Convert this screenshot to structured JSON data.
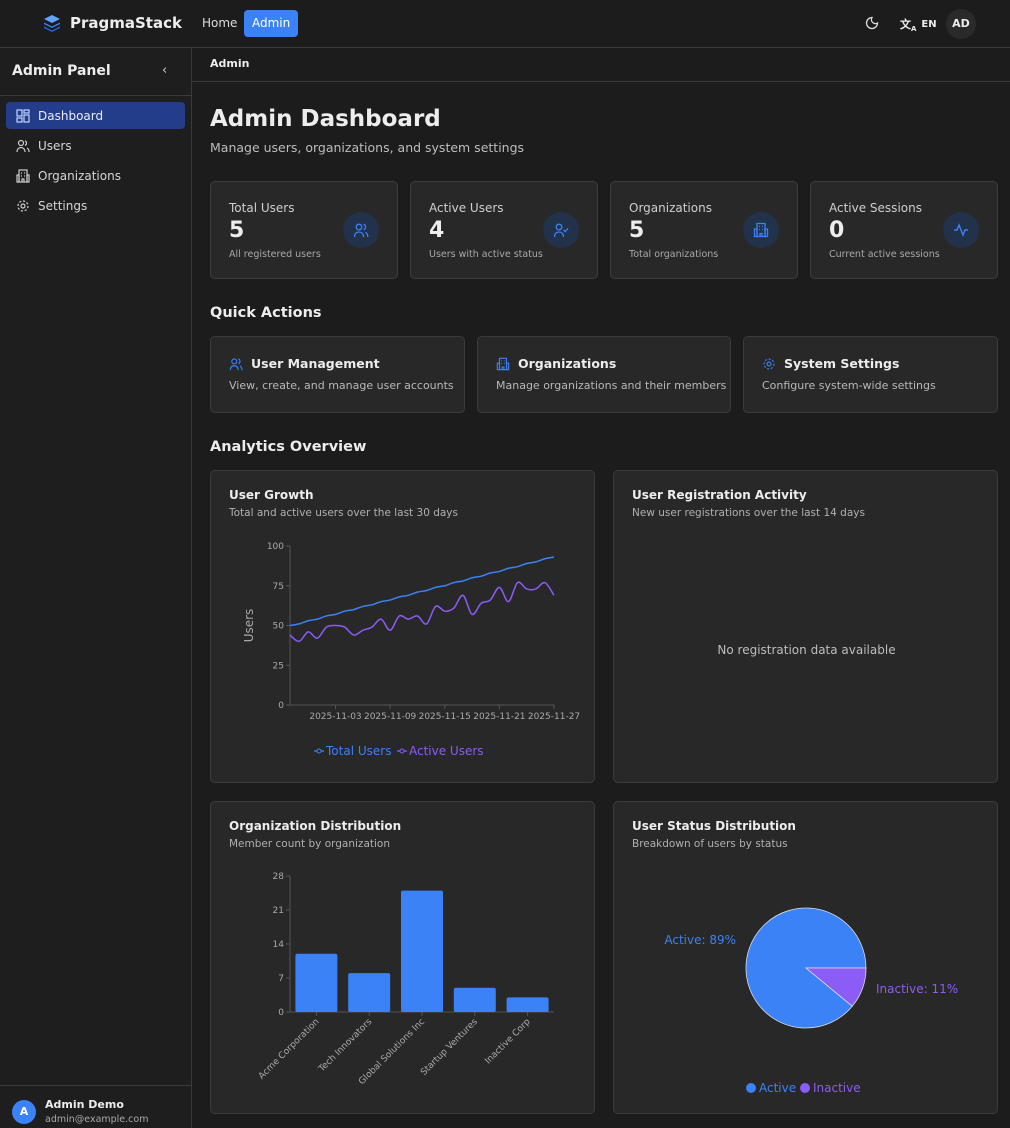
{
  "topbar": {
    "brand": "PragmaStack",
    "nav": [
      {
        "label": "Home",
        "active": false
      },
      {
        "label": "Admin",
        "active": true
      }
    ],
    "theme_icon": "moon-icon",
    "language": "EN",
    "avatar": "AD"
  },
  "sidebar": {
    "title": "Admin Panel",
    "items": [
      {
        "label": "Dashboard",
        "icon": "dashboard-icon",
        "active": true
      },
      {
        "label": "Users",
        "icon": "users-icon"
      },
      {
        "label": "Organizations",
        "icon": "building-icon"
      },
      {
        "label": "Settings",
        "icon": "gear-icon"
      }
    ],
    "user": {
      "initial": "A",
      "name": "Admin Demo",
      "email": "admin@example.com"
    }
  },
  "breadcrumb": "Admin",
  "page": {
    "title": "Admin Dashboard",
    "subtitle": "Manage users, organizations, and system settings"
  },
  "stats": [
    {
      "label": "Total Users",
      "value": "5",
      "sub": "All registered users",
      "icon": "users-icon"
    },
    {
      "label": "Active Users",
      "value": "4",
      "sub": "Users with active status",
      "icon": "user-check-icon"
    },
    {
      "label": "Organizations",
      "value": "5",
      "sub": "Total organizations",
      "icon": "building-icon"
    },
    {
      "label": "Active Sessions",
      "value": "0",
      "sub": "Current active sessions",
      "icon": "activity-icon"
    }
  ],
  "quick_actions": {
    "title": "Quick Actions",
    "items": [
      {
        "title": "User Management",
        "desc": "View, create, and manage user accounts",
        "icon": "users-icon"
      },
      {
        "title": "Organizations",
        "desc": "Manage organizations and their members",
        "icon": "building-icon"
      },
      {
        "title": "System Settings",
        "desc": "Configure system-wide settings",
        "icon": "gear-icon"
      }
    ]
  },
  "analytics": {
    "title": "Analytics Overview",
    "growth": {
      "title": "User Growth",
      "subtitle": "Total and active users over the last 30 days"
    },
    "registration": {
      "title": "User Registration Activity",
      "subtitle": "New user registrations over the last 14 days",
      "empty": "No registration data available"
    },
    "orgs": {
      "title": "Organization Distribution",
      "subtitle": "Member count by organization"
    },
    "status": {
      "title": "User Status Distribution",
      "subtitle": "Breakdown of users by status"
    }
  },
  "colors": {
    "accent": "#3b82f6",
    "purple": "#8b5cf6"
  },
  "chart_data": [
    {
      "type": "line",
      "ylabel": "Users",
      "ylim": [
        0,
        100
      ],
      "yticks": [
        0,
        25,
        50,
        75,
        100
      ],
      "xticks": [
        "2025-11-03",
        "2025-11-09",
        "2025-11-15",
        "2025-11-21",
        "2025-11-27"
      ],
      "x_start": "2025-10-29",
      "x_end": "2025-11-27",
      "legend": "bottom",
      "series": [
        {
          "name": "Total Users",
          "color": "#3b82f6",
          "values": [
            50,
            51,
            53,
            54,
            56,
            57,
            59,
            60,
            62,
            63,
            65,
            66,
            68,
            69,
            71,
            72,
            74,
            75,
            77,
            78,
            80,
            81,
            83,
            84,
            86,
            87,
            89,
            90,
            92,
            93
          ]
        },
        {
          "name": "Active Users",
          "color": "#8b5cf6",
          "values": [
            44,
            40,
            46,
            42,
            49,
            50,
            49,
            44,
            47,
            49,
            54,
            47,
            56,
            54,
            56,
            51,
            62,
            59,
            61,
            69,
            57,
            64,
            66,
            74,
            65,
            77,
            73,
            73,
            77,
            69
          ]
        }
      ]
    },
    {
      "type": "bar",
      "categories": [
        "Acme Corporation",
        "Tech Innovators",
        "Global Solutions Inc",
        "Startup Ventures",
        "Inactive Corp"
      ],
      "values": [
        12,
        8,
        25,
        5,
        3
      ],
      "ylim": [
        0,
        28
      ],
      "yticks": [
        0,
        7,
        14,
        21,
        28
      ],
      "color": "#3b82f6"
    },
    {
      "type": "pie",
      "slices": [
        {
          "name": "Active",
          "value": 89,
          "label": "Active: 89%",
          "color": "#3b82f6"
        },
        {
          "name": "Inactive",
          "value": 11,
          "label": "Inactive: 11%",
          "color": "#8b5cf6"
        }
      ],
      "legend": "bottom"
    }
  ]
}
